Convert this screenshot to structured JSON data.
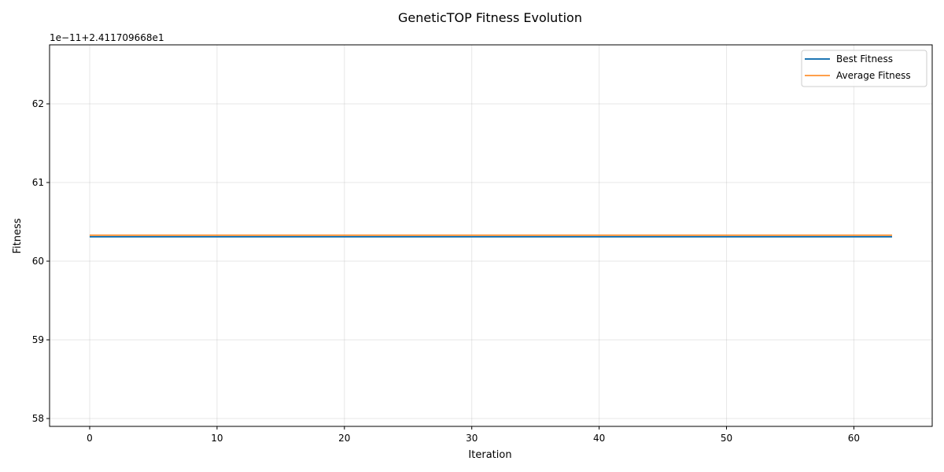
{
  "chart_data": {
    "type": "line",
    "title": "GeneticTOP Fitness Evolution",
    "xlabel": "Iteration",
    "ylabel": "Fitness",
    "y_offset_label": "1e−11+2.411709668e1",
    "xlim": [
      -3.15,
      66.15
    ],
    "ylim": [
      57.9,
      62.75
    ],
    "x_ticks": [
      0,
      10,
      20,
      30,
      40,
      50,
      60
    ],
    "x_tick_labels": [
      "0",
      "10",
      "20",
      "30",
      "40",
      "50",
      "60"
    ],
    "y_ticks": [
      58,
      59,
      60,
      61,
      62
    ],
    "y_tick_labels": [
      "58",
      "59",
      "60",
      "61",
      "62"
    ],
    "x_range": [
      0,
      63
    ],
    "grid": true,
    "legend_position": "top-right",
    "series": [
      {
        "name": "Best Fitness",
        "color": "#1f77b4",
        "x": [
          0,
          63
        ],
        "values": [
          60.31,
          60.31
        ]
      },
      {
        "name": "Average Fitness",
        "color": "#ff7f0e",
        "x": [
          0,
          63
        ],
        "values": [
          60.33,
          60.33
        ]
      }
    ]
  }
}
